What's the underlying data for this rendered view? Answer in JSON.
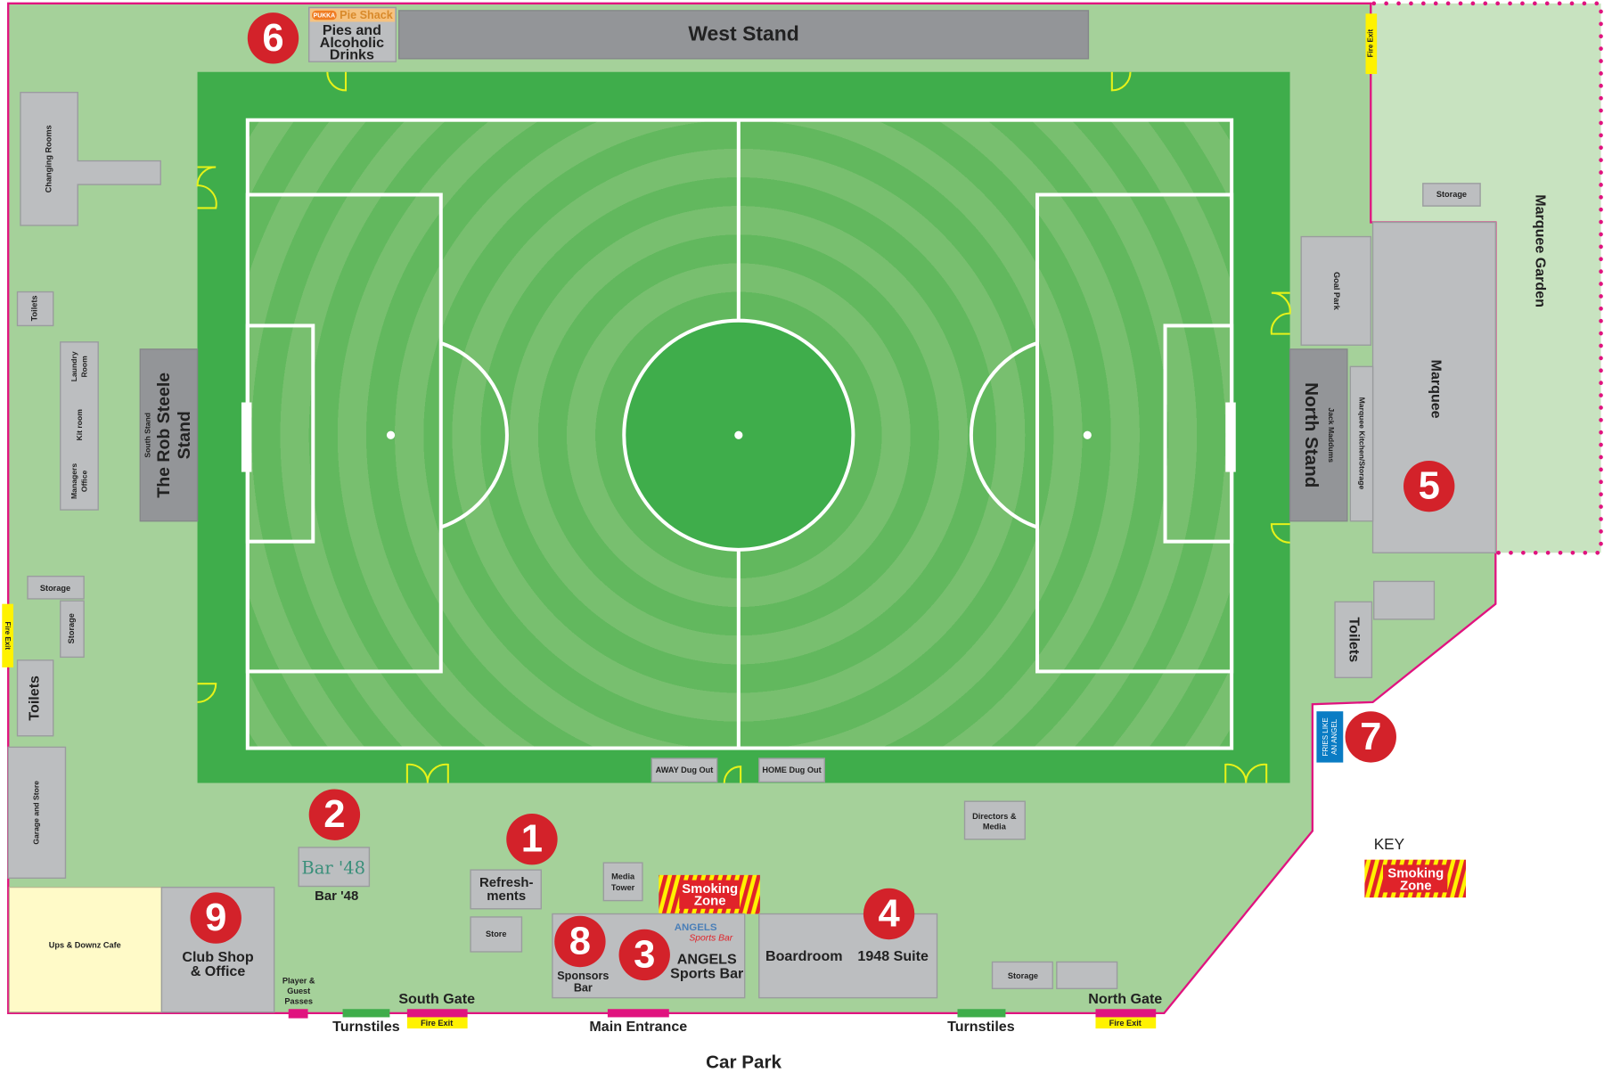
{
  "colors": {
    "site": "#a5d19a",
    "garden": "#c8e3c0",
    "pitch_surround": "#3fad4b",
    "pitch": "#62b85e",
    "boundary": "#e0137f",
    "badge": "#d3222a",
    "fire_exit": "#fff200",
    "building": "#bcbec0",
    "stand": "#939598",
    "cafe": "#fffac8"
  },
  "stands": {
    "west": "West Stand",
    "south_small": "South Stand",
    "south_1": "The Rob Steele",
    "south_2": "Stand",
    "north_small": "Jack Maddums",
    "north": "North Stand"
  },
  "pie_shack": {
    "brand": "PUKKA",
    "name": "Pie Shack",
    "line1": "Pies and",
    "line2": "Alcoholic",
    "line3": "Drinks"
  },
  "buildings": {
    "changing_rooms": "Changing Rooms",
    "toilets_small": "Toilets",
    "laundry_1": "Laundry",
    "laundry_2": "Room",
    "kit_room": "Kit room",
    "managers_1": "Managers",
    "managers_2": "Office",
    "storage_a": "Storage",
    "storage_b": "Storage",
    "toilets_left": "Toilets",
    "garage": "Garage and Store",
    "cafe": "Ups & Downz Cafe",
    "club_shop_1": "Club Shop",
    "club_shop_2": "& Office",
    "bar48_logo": "Bar '48",
    "bar48": "Bar '48",
    "refresh_1": "Refresh-",
    "refresh_2": "ments",
    "store": "Store",
    "media_1": "Media",
    "media_2": "Tower",
    "sponsors_1": "Sponsors",
    "sponsors_2": "Bar",
    "angels_logo_1": "ANGELS",
    "angels_logo_2": "Sports Bar",
    "angels_1": "ANGELS",
    "angels_2": "Sports Bar",
    "boardroom": "Boardroom",
    "suite": "1948 Suite",
    "directors_1": "Directors &",
    "directors_2": "Media",
    "storage_c": "Storage",
    "away_dugout": "AWAY Dug Out",
    "home_dugout": "HOME Dug Out",
    "storage_d": "Storage",
    "goal_park": "Goal Park",
    "marquee": "Marquee",
    "marquee_kitchen": "Marquee Kitchen/Storage",
    "marquee_garden": "Marquee Garden",
    "toilets_right": "Toilets",
    "fries_1": "FRIES LIKE",
    "fries_2": "AN ANGEL"
  },
  "smoking_zone": {
    "line1": "Smoking",
    "line2": "Zone"
  },
  "badges": [
    "1",
    "2",
    "3",
    "4",
    "5",
    "6",
    "7",
    "8",
    "9"
  ],
  "gates": {
    "player_passes_1": "Player &",
    "player_passes_2": "Guest",
    "player_passes_3": "Passes",
    "turnstiles_south": "Turnstiles",
    "south_gate": "South Gate",
    "fire_exit": "Fire Exit",
    "main_entrance": "Main Entrance",
    "turnstiles_north": "Turnstiles",
    "north_gate": "North Gate",
    "fire_exit_left": "Fire Exit",
    "fire_exit_top": "Fire Exit",
    "fire_exit_north": "Fire Exit"
  },
  "car_park": "Car Park",
  "key": {
    "title": "KEY",
    "line1": "Smoking",
    "line2": "Zone"
  }
}
